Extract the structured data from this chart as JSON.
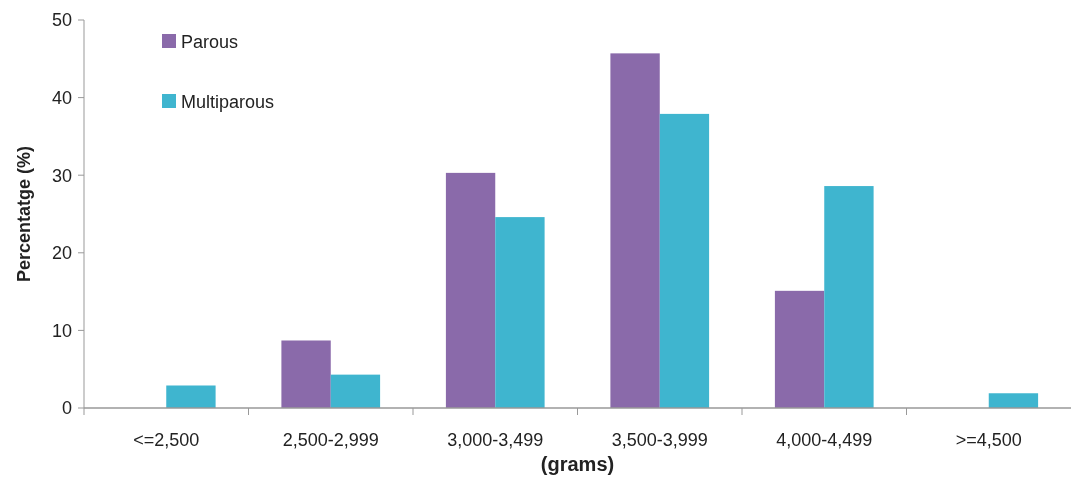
{
  "chart_data": {
    "type": "bar",
    "xlabel": "(grams)",
    "ylabel": "Percentatge (%)",
    "categories": [
      "<=2,500",
      "2,500-2,999",
      "3,000-3,499",
      "3,500-3,999",
      "4,000-4,499",
      ">=4,500"
    ],
    "series": [
      {
        "name": "Parous",
        "color": "#8a6aaa",
        "values": [
          0,
          8.7,
          30.3,
          45.7,
          15.1,
          0
        ]
      },
      {
        "name": "Multiparous",
        "color": "#3fb5cf",
        "values": [
          2.9,
          4.3,
          24.6,
          37.9,
          28.6,
          1.9
        ]
      }
    ],
    "ylim": [
      0,
      50
    ],
    "yticks": [
      0,
      10,
      20,
      30,
      40,
      50
    ],
    "legend": "top left"
  }
}
